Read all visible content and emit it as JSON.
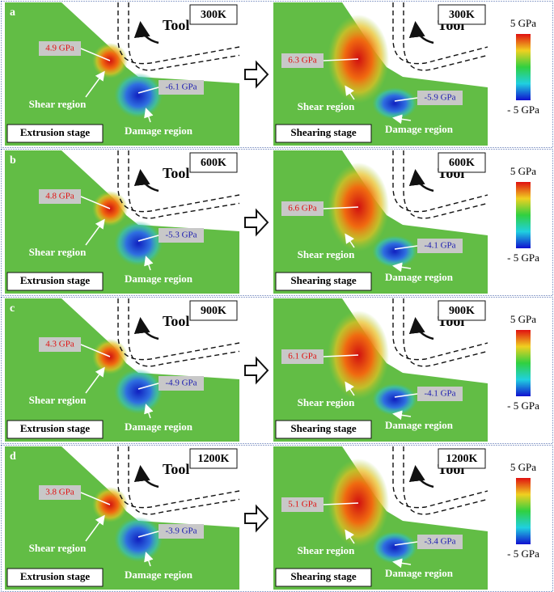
{
  "labels": {
    "tool": "Tool",
    "shear": "Shear region",
    "damage": "Damage region",
    "left_stage": "Extrusion stage",
    "right_stage": "Shearing stage"
  },
  "colorbar": {
    "max": "5 GPa",
    "min": "- 5 GPa"
  },
  "rows": [
    {
      "id": "a",
      "temperature": "300K",
      "left": {
        "shear_value": "4.9 GPa",
        "damage_value": "-6.1 GPa"
      },
      "right": {
        "shear_value": "6.3 GPa",
        "damage_value": "-5.9 GPa"
      }
    },
    {
      "id": "b",
      "temperature": "600K",
      "left": {
        "shear_value": "4.8 GPa",
        "damage_value": "-5.3 GPa"
      },
      "right": {
        "shear_value": "6.6 GPa",
        "damage_value": "-4.1 GPa"
      }
    },
    {
      "id": "c",
      "temperature": "900K",
      "left": {
        "shear_value": "4.3 GPa",
        "damage_value": "-4.9 GPa"
      },
      "right": {
        "shear_value": "6.1 GPa",
        "damage_value": "-4.1 GPa"
      }
    },
    {
      "id": "d",
      "temperature": "1200K",
      "left": {
        "shear_value": "3.8 GPa",
        "damage_value": "-3.9 GPa"
      },
      "right": {
        "shear_value": "5.1 GPa",
        "damage_value": "-3.4 GPa"
      }
    }
  ]
}
